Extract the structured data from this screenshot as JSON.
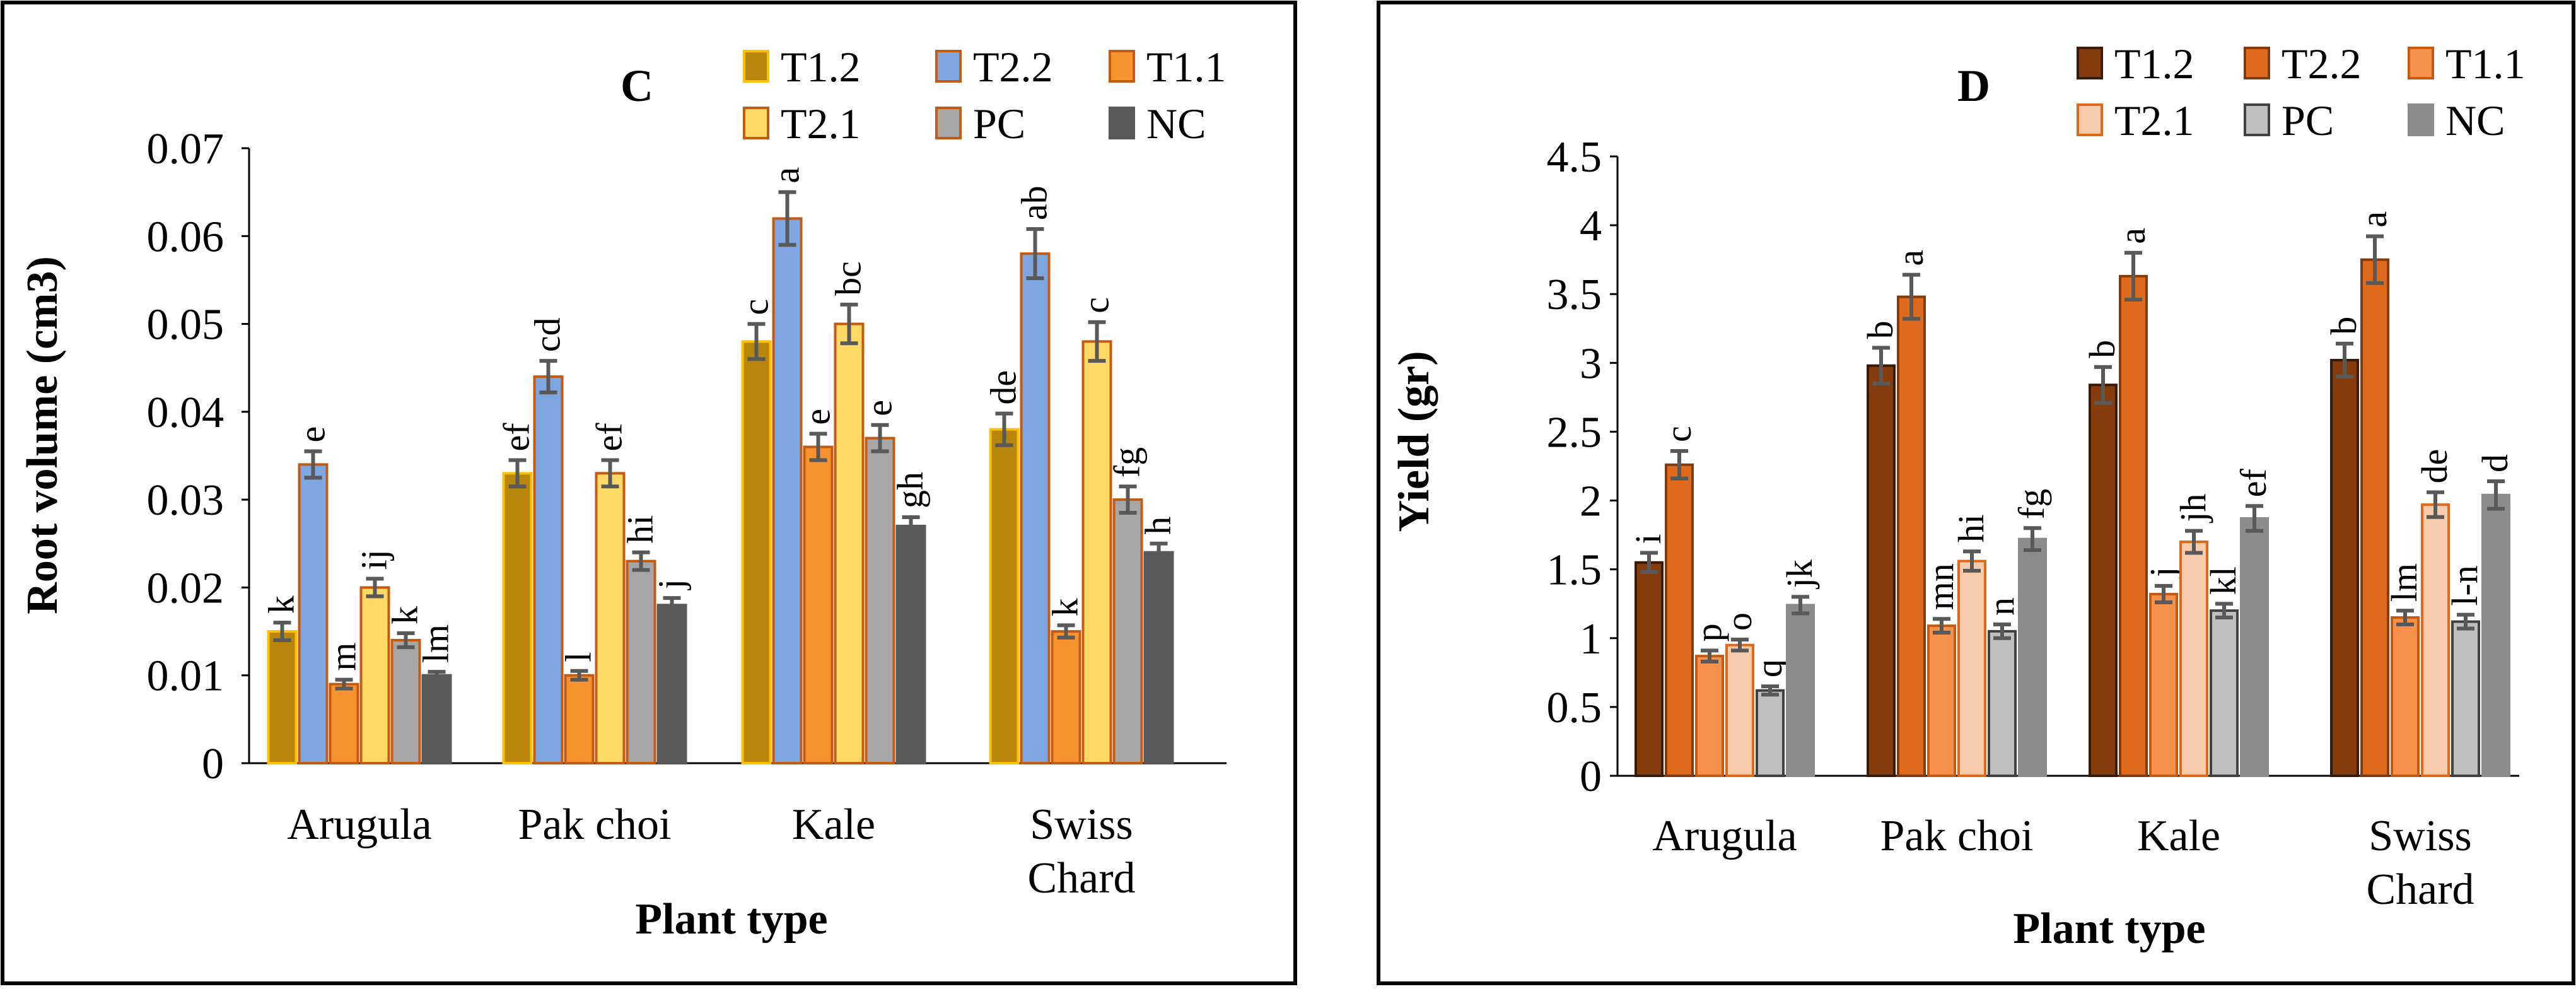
{
  "chart_data": [
    {
      "type": "bar",
      "panel_label": "C",
      "ylabel": "Root volume (cm3)",
      "xlabel": "Plant type",
      "ylim": [
        0,
        0.07
      ],
      "yticks": [
        "0",
        "0.01",
        "0.02",
        "0.03",
        "0.04",
        "0.05",
        "0.06",
        "0.07"
      ],
      "categories": [
        [
          "Arugula"
        ],
        [
          "Pak choi"
        ],
        [
          "Kale"
        ],
        [
          "Swiss",
          "Chard"
        ]
      ],
      "legend_rows": [
        [
          "T1.2",
          "T2.2",
          "T1.1"
        ],
        [
          "T2.1",
          "PC",
          "NC"
        ]
      ],
      "series": [
        {
          "name": "T1.2",
          "color": "#B8860B",
          "edge": "#FFC000",
          "values": [
            0.015,
            0.033,
            0.048,
            0.038
          ],
          "errors": [
            0.001,
            0.0015,
            0.002,
            0.0018
          ],
          "letters": [
            "k",
            "ef",
            "c",
            "de"
          ]
        },
        {
          "name": "T2.2",
          "color": "#7EA6E0",
          "edge": "#C55A11",
          "values": [
            0.034,
            0.044,
            0.062,
            0.058
          ],
          "errors": [
            0.0015,
            0.0018,
            0.003,
            0.0028
          ],
          "letters": [
            "e",
            "cd",
            "a",
            "ab"
          ]
        },
        {
          "name": "T1.1",
          "color": "#F7922E",
          "edge": "#C55A11",
          "values": [
            0.009,
            0.01,
            0.036,
            0.015
          ],
          "errors": [
            0.0005,
            0.0005,
            0.0015,
            0.0007
          ],
          "letters": [
            "m",
            "l",
            "e",
            "k"
          ]
        },
        {
          "name": "T2.1",
          "color": "#FFD966",
          "edge": "#C55A11",
          "values": [
            0.02,
            0.033,
            0.05,
            0.048
          ],
          "errors": [
            0.001,
            0.0015,
            0.0022,
            0.0022
          ],
          "letters": [
            "ij",
            "ef",
            "bc",
            "c"
          ]
        },
        {
          "name": "PC",
          "color": "#A6A6A6",
          "edge": "#C55A11",
          "values": [
            0.014,
            0.023,
            0.037,
            0.03
          ],
          "errors": [
            0.0008,
            0.001,
            0.0015,
            0.0015
          ],
          "letters": [
            "k",
            "hi",
            "e",
            "fg"
          ]
        },
        {
          "name": "NC",
          "color": "#595959",
          "edge": "#595959",
          "values": [
            0.01,
            0.018,
            0.027,
            0.024
          ],
          "errors": [
            0.0004,
            0.0008,
            0.001,
            0.001
          ],
          "letters": [
            "lm",
            "j",
            "gh",
            "h"
          ]
        }
      ]
    },
    {
      "type": "bar",
      "panel_label": "D",
      "ylabel": "Yield (gr)",
      "xlabel": "Plant type",
      "ylim": [
        0,
        4.5
      ],
      "yticks": [
        "0",
        "0.5",
        "1",
        "1.5",
        "2",
        "2.5",
        "3",
        "3.5",
        "4",
        "4.5"
      ],
      "categories": [
        [
          "Arugula"
        ],
        [
          "Pak choi"
        ],
        [
          "Kale"
        ],
        [
          "Swiss",
          "Chard"
        ]
      ],
      "legend_rows": [
        [
          "T1.2",
          "T2.2",
          "T1.1"
        ],
        [
          "T2.1",
          "PC",
          "NC"
        ]
      ],
      "series": [
        {
          "name": "T1.2",
          "color": "#843C0C",
          "edge": "#3B1A05",
          "values": [
            1.55,
            2.98,
            2.84,
            3.02
          ],
          "errors": [
            0.07,
            0.13,
            0.13,
            0.12
          ],
          "letters": [
            "i",
            "b",
            "b",
            "b"
          ]
        },
        {
          "name": "T2.2",
          "color": "#E06A1B",
          "edge": "#843C0C",
          "values": [
            2.26,
            3.48,
            3.63,
            3.75
          ],
          "errors": [
            0.1,
            0.16,
            0.17,
            0.17
          ],
          "letters": [
            "c",
            "a",
            "a",
            "a"
          ]
        },
        {
          "name": "T1.1",
          "color": "#F7904A",
          "edge": "#C55A11",
          "values": [
            0.87,
            1.09,
            1.32,
            1.15
          ],
          "errors": [
            0.04,
            0.05,
            0.06,
            0.05
          ],
          "letters": [
            "p",
            "mn",
            "j",
            "lm"
          ]
        },
        {
          "name": "T2.1",
          "color": "#F8CBAD",
          "edge": "#E06A1B",
          "values": [
            0.95,
            1.56,
            1.7,
            1.97
          ],
          "errors": [
            0.04,
            0.07,
            0.08,
            0.09
          ],
          "letters": [
            "o",
            "hi",
            "jh",
            "de"
          ]
        },
        {
          "name": "PC",
          "color": "#BFBFBF",
          "edge": "#404040",
          "values": [
            0.62,
            1.05,
            1.2,
            1.12
          ],
          "errors": [
            0.03,
            0.05,
            0.05,
            0.05
          ],
          "letters": [
            "q",
            "n",
            "kl",
            "l-n"
          ]
        },
        {
          "name": "NC",
          "color": "#8C8C8C",
          "edge": "#8C8C8C",
          "values": [
            1.24,
            1.72,
            1.87,
            2.04
          ],
          "errors": [
            0.06,
            0.08,
            0.09,
            0.1
          ],
          "letters": [
            "jk",
            "fg",
            "ef",
            "d"
          ]
        }
      ]
    }
  ]
}
